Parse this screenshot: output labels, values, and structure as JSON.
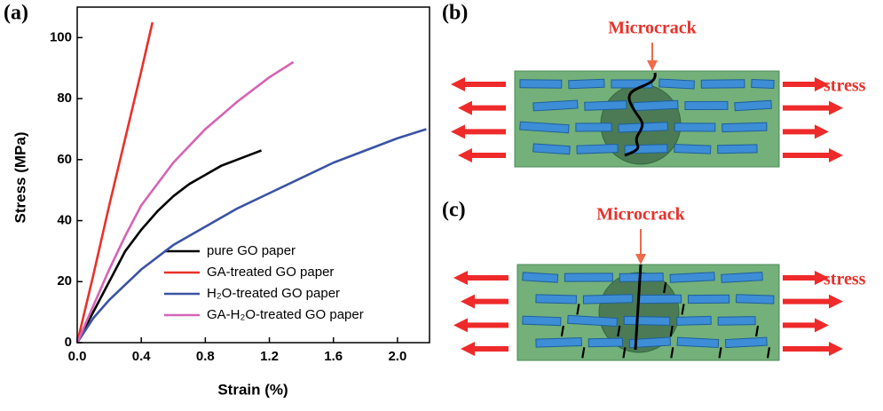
{
  "chart_data": {
    "type": "line",
    "panel_label": "(a)",
    "x_label": "Strain (%)",
    "y_label": "Stress (MPa)",
    "xlim": [
      0,
      2.2
    ],
    "ylim": [
      0,
      110
    ],
    "xticks": [
      {
        "value": 0,
        "label": "0.0"
      },
      0.4,
      0.8,
      1.2,
      1.6,
      {
        "value": 2,
        "label": "2.0"
      }
    ],
    "yticks": [
      0,
      20,
      40,
      60,
      80,
      100
    ],
    "series": [
      {
        "name": "pure GO paper",
        "color": "#000000",
        "x": [
          0,
          0.1,
          0.2,
          0.3,
          0.4,
          0.5,
          0.6,
          0.7,
          0.8,
          0.9,
          1.0,
          1.1,
          1.15
        ],
        "values": [
          0,
          10,
          20,
          30,
          37,
          43,
          48,
          52,
          55,
          58,
          60,
          62,
          63
        ]
      },
      {
        "name": "GA-treated GO paper",
        "color": "#e8312a",
        "x": [
          0,
          0.1,
          0.2,
          0.3,
          0.4,
          0.47
        ],
        "values": [
          0,
          22,
          45,
          67,
          89,
          105
        ]
      },
      {
        "name": "H₂O-treated GO paper",
        "color": "#3a53a4",
        "x": [
          0,
          0.1,
          0.2,
          0.4,
          0.6,
          0.8,
          1.0,
          1.2,
          1.4,
          1.6,
          1.8,
          2.0,
          2.18
        ],
        "values": [
          0,
          8,
          14,
          24,
          32,
          38,
          44,
          49,
          54,
          59,
          63,
          67,
          70
        ]
      },
      {
        "name": "GA-H₂O-treated GO paper",
        "color": "#d563b4",
        "x": [
          0,
          0.1,
          0.2,
          0.3,
          0.4,
          0.6,
          0.8,
          1.0,
          1.2,
          1.35
        ],
        "values": [
          0,
          12,
          24,
          35,
          45,
          59,
          70,
          79,
          87,
          92
        ]
      }
    ]
  },
  "diagrams": [
    {
      "panel_label": "(b)",
      "annotation": "Microcrack",
      "force_label": "stress"
    },
    {
      "panel_label": "(c)",
      "annotation": "Microcrack",
      "force_label": "stress"
    }
  ]
}
